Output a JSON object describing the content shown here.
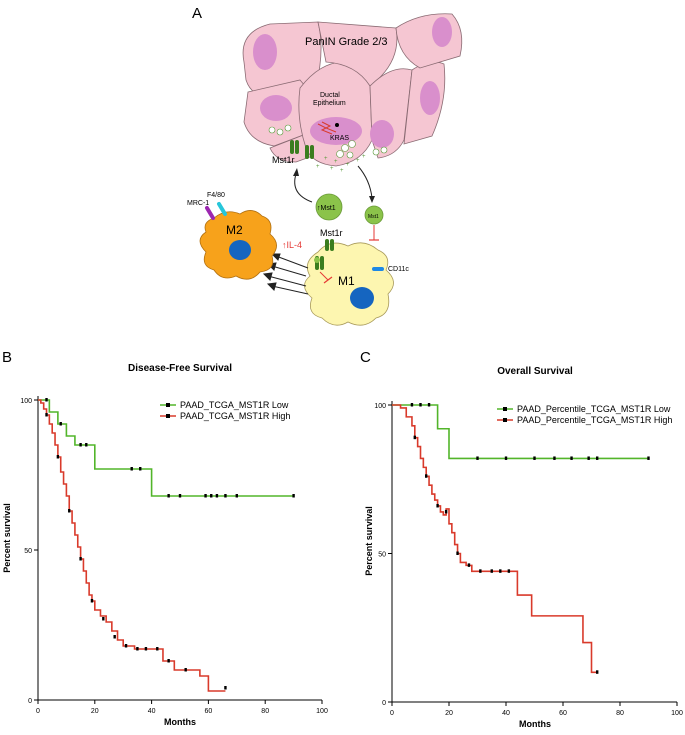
{
  "panels": {
    "a": {
      "letter": "A",
      "title": "PanIN Grade 2/3",
      "ductal_label": "Ductal\nEpithelium",
      "ductal_line1": "Ductal",
      "ductal_line2": "Epithelium",
      "kras_label": "KRAS",
      "mst1r_upper_label": "Mst1r",
      "mst1_up_label": "↑Mst1",
      "mst1_small_label": "Mst1",
      "mst1r_m1_label": "Mst1r",
      "il4_label": "↑IL-4",
      "m1_label": "M1",
      "m2_label": "M2",
      "cd11c_label": "CD11c",
      "f480_label": "F4/80",
      "mrc1_label": "MRC-1",
      "colors": {
        "cell_fill": "#f5c6d2",
        "cell_stroke": "#8a6b73",
        "nucleus": "#d98fcc",
        "receptor": "#3a7d1e",
        "mst1_ball": "#8bc34a",
        "m1_fill": "#fdf6b0",
        "m2_fill": "#f7a21b",
        "m_nucleus": "#1565c0",
        "inhibit": "#e53935",
        "cd11c": "#1e88e5",
        "f480": "#26c6da",
        "mrc1": "#9c27b0"
      }
    },
    "b": {
      "letter": "B",
      "title": "Disease-Free Survival",
      "ylabel": "Percent survival",
      "xlabel": "Months",
      "legend": [
        "PAAD_TCGA_MST1R Low",
        "PAAD_TCGA_MST1R High"
      ]
    },
    "c": {
      "letter": "C",
      "title": "Overall Survival",
      "ylabel": "Percent survival",
      "xlabel": "Months",
      "legend": [
        "PAAD_Percentile_TCGA_MST1R Low",
        "PAAD_Percentile_TCGA_MST1R High"
      ]
    }
  },
  "chart_data": [
    {
      "type": "line",
      "title": "Disease-Free Survival",
      "xlabel": "Months",
      "ylabel": "Percent survival",
      "xlim": [
        0,
        100
      ],
      "ylim": [
        0,
        100
      ],
      "xticks": [
        0,
        20,
        40,
        60,
        80,
        100
      ],
      "yticks": [
        0,
        50,
        100
      ],
      "series": [
        {
          "name": "PAAD_TCGA_MST1R Low",
          "color": "#52b52a",
          "step_points": [
            [
              0,
              100
            ],
            [
              4,
              100
            ],
            [
              4,
              96
            ],
            [
              7,
              96
            ],
            [
              7,
              92
            ],
            [
              10,
              92
            ],
            [
              10,
              88
            ],
            [
              13,
              88
            ],
            [
              13,
              85
            ],
            [
              20,
              85
            ],
            [
              20,
              77
            ],
            [
              40,
              77
            ],
            [
              40,
              68
            ],
            [
              90,
              68
            ]
          ],
          "censors": [
            [
              3,
              100
            ],
            [
              8,
              92
            ],
            [
              15,
              85
            ],
            [
              17,
              85
            ],
            [
              33,
              77
            ],
            [
              36,
              77
            ],
            [
              46,
              68
            ],
            [
              50,
              68
            ],
            [
              59,
              68
            ],
            [
              61,
              68
            ],
            [
              63,
              68
            ],
            [
              66,
              68
            ],
            [
              70,
              68
            ],
            [
              90,
              68
            ]
          ]
        },
        {
          "name": "PAAD_TCGA_MST1R High",
          "color": "#d93a2b",
          "step_points": [
            [
              0,
              100
            ],
            [
              1,
              99
            ],
            [
              2,
              97
            ],
            [
              3,
              95
            ],
            [
              4,
              92
            ],
            [
              5,
              89
            ],
            [
              6,
              85
            ],
            [
              7,
              81
            ],
            [
              8,
              76
            ],
            [
              9,
              72
            ],
            [
              10,
              68
            ],
            [
              11,
              63
            ],
            [
              12,
              59
            ],
            [
              13,
              55
            ],
            [
              14,
              51
            ],
            [
              15,
              47
            ],
            [
              16,
              43
            ],
            [
              17,
              39
            ],
            [
              18,
              35
            ],
            [
              19,
              33
            ],
            [
              20,
              30
            ],
            [
              22,
              28
            ],
            [
              24,
              26
            ],
            [
              26,
              23
            ],
            [
              28,
              20
            ],
            [
              30,
              18
            ],
            [
              34,
              17
            ],
            [
              40,
              17
            ],
            [
              44,
              15
            ],
            [
              44,
              13
            ],
            [
              48,
              12
            ],
            [
              48,
              10
            ],
            [
              54,
              10
            ],
            [
              57,
              8
            ],
            [
              60,
              5
            ],
            [
              60,
              3
            ],
            [
              66,
              3
            ]
          ],
          "censors": [
            [
              3,
              95
            ],
            [
              7,
              81
            ],
            [
              11,
              63
            ],
            [
              15,
              47
            ],
            [
              19,
              33
            ],
            [
              23,
              27
            ],
            [
              27,
              21
            ],
            [
              31,
              18
            ],
            [
              35,
              17
            ],
            [
              38,
              17
            ],
            [
              42,
              17
            ],
            [
              46,
              13
            ],
            [
              52,
              10
            ],
            [
              66,
              4
            ]
          ]
        }
      ]
    },
    {
      "type": "line",
      "title": "Overall Survival",
      "xlabel": "Months",
      "ylabel": "Percent survival",
      "xlim": [
        0,
        100
      ],
      "ylim": [
        0,
        100
      ],
      "xticks": [
        0,
        20,
        40,
        60,
        80,
        100
      ],
      "yticks": [
        0,
        50,
        100
      ],
      "series": [
        {
          "name": "PAAD_Percentile_TCGA_MST1R Low",
          "color": "#52b52a",
          "step_points": [
            [
              0,
              100
            ],
            [
              16,
              100
            ],
            [
              16,
              92
            ],
            [
              20,
              92
            ],
            [
              20,
              82
            ],
            [
              90,
              82
            ]
          ],
          "censors": [
            [
              7,
              100
            ],
            [
              10,
              100
            ],
            [
              13,
              100
            ],
            [
              30,
              82
            ],
            [
              40,
              82
            ],
            [
              50,
              82
            ],
            [
              57,
              82
            ],
            [
              63,
              82
            ],
            [
              69,
              82
            ],
            [
              72,
              82
            ],
            [
              90,
              82
            ]
          ]
        },
        {
          "name": "PAAD_Percentile_TCGA_MST1R High",
          "color": "#d93a2b",
          "step_points": [
            [
              0,
              100
            ],
            [
              3,
              99
            ],
            [
              5,
              96
            ],
            [
              7,
              93
            ],
            [
              8,
              89
            ],
            [
              9,
              86
            ],
            [
              10,
              82
            ],
            [
              11,
              79
            ],
            [
              12,
              76
            ],
            [
              13,
              73
            ],
            [
              14,
              70
            ],
            [
              15,
              68
            ],
            [
              16,
              66
            ],
            [
              17,
              64
            ],
            [
              18,
              63
            ],
            [
              19,
              65
            ],
            [
              20,
              60
            ],
            [
              21,
              57
            ],
            [
              22,
              53
            ],
            [
              23,
              50
            ],
            [
              24,
              47
            ],
            [
              26,
              46
            ],
            [
              28,
              44
            ],
            [
              33,
              44
            ],
            [
              44,
              44
            ],
            [
              44,
              36
            ],
            [
              49,
              36
            ],
            [
              49,
              29
            ],
            [
              67,
              29
            ],
            [
              67,
              20
            ],
            [
              70,
              20
            ],
            [
              70,
              10
            ],
            [
              72,
              10
            ]
          ],
          "censors": [
            [
              8,
              89
            ],
            [
              12,
              76
            ],
            [
              16,
              66
            ],
            [
              19,
              64
            ],
            [
              23,
              50
            ],
            [
              27,
              46
            ],
            [
              31,
              44
            ],
            [
              35,
              44
            ],
            [
              38,
              44
            ],
            [
              41,
              44
            ],
            [
              72,
              10
            ]
          ]
        }
      ]
    }
  ]
}
